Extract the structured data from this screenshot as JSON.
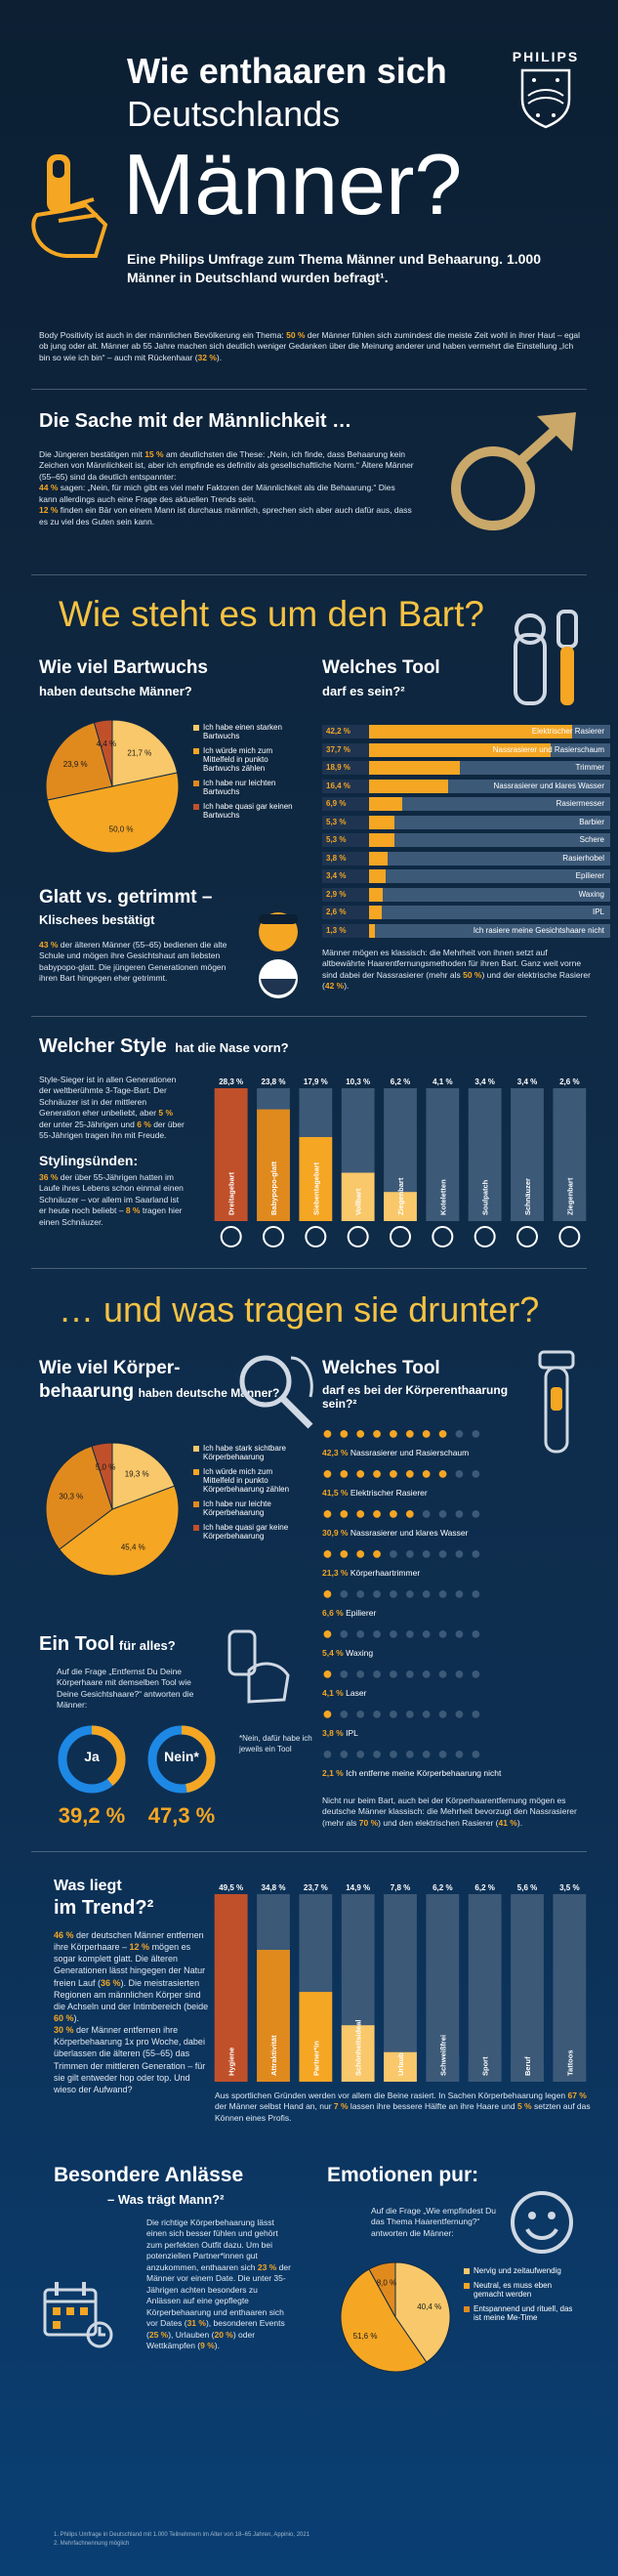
{
  "header": {
    "title_line1": "Wie enthaaren sich",
    "title_line2": "Deutschlands",
    "title_line3": "Männer?",
    "brand": "PHILIPS",
    "subtitle": "Eine Philips Umfrage zum Thema Männer und Behaarung. 1.000 Männer in Deutschland wurden befragt¹.",
    "intro_a": "Body Positivity ist auch in der männlichen Bevölkerung ein Thema: ",
    "intro_pct1": "50 %",
    "intro_b": " der Männer fühlen sich zumindest die meiste Zeit wohl in ihrer Haut – egal ob jung oder alt. Männer ab 55 Jahre machen sich deutlich weniger Gedanken über die Meinung anderer und haben vermehrt die Einstellung „Ich bin so wie ich bin“ – auch mit Rückenhaar (",
    "intro_pct2": "32 %",
    "intro_c": ")."
  },
  "manliness": {
    "title": "Die Sache mit der Männlichkeit …",
    "p1a": "Die Jüngeren bestätigen mit ",
    "p1pct": "15 %",
    "p1b": " am deutlichsten die These: „Nein, ich finde, dass Behaarung kein Zeichen von Männlichkeit ist, aber ich empfinde es definitiv als gesellschaftliche Norm.“ Ältere Männer (55–65) sind da deutlich entspannter:",
    "p2pct": "44 %",
    "p2b": " sagen: „Nein, für mich gibt es viel mehr Faktoren der Männlichkeit als die Behaarung.“ Dies kann allerdings auch eine Frage des aktuellen Trends sein.",
    "p3pct": "12 %",
    "p3b": " finden ein Bär von einem Mann ist durchaus männlich, sprechen sich aber auch dafür aus, dass es zu viel des Guten sein kann."
  },
  "beard_section": {
    "title": "Wie steht es um den Bart?",
    "growth_title": "Wie viel Bartwuchs",
    "growth_sub": "haben deutsche Männer?",
    "growth_legend": [
      "Ich habe einen starken Bartwuchs",
      "Ich würde mich zum Mittelfeld in punkto Bartwuchs zählen",
      "Ich habe nur leichten Bartwuchs",
      "Ich habe quasi gar keinen Bartwuchs"
    ],
    "growth_labels": [
      "21,7 %",
      "50,0 %",
      "23,9 %",
      "4,4 %"
    ],
    "tool_title": "Welches Tool",
    "tool_sub": "darf es sein?²",
    "tools": [
      {
        "pct": "42,2 %",
        "label": "Elektrischer Rasierer",
        "value": 42.2
      },
      {
        "pct": "37,7 %",
        "label": "Nassrasierer und Rasierschaum",
        "value": 37.7
      },
      {
        "pct": "18,9 %",
        "label": "Trimmer",
        "value": 18.9
      },
      {
        "pct": "16,4 %",
        "label": "Nassrasierer und klares Wasser",
        "value": 16.4
      },
      {
        "pct": "6,9 %",
        "label": "Rasiermesser",
        "value": 6.9
      },
      {
        "pct": "5,3 %",
        "label": "Barbier",
        "value": 5.3
      },
      {
        "pct": "5,3 %",
        "label": "Schere",
        "value": 5.3
      },
      {
        "pct": "3,8 %",
        "label": "Rasierhobel",
        "value": 3.8
      },
      {
        "pct": "3,4 %",
        "label": "Epilierer",
        "value": 3.4
      },
      {
        "pct": "2,9 %",
        "label": "Waxing",
        "value": 2.9
      },
      {
        "pct": "2,6 %",
        "label": "IPL",
        "value": 2.6
      },
      {
        "pct": "1,3 %",
        "label": "Ich rasiere meine Gesichtshaare nicht",
        "value": 1.3
      }
    ],
    "tool_note_a": "Männer mögen es klassisch: die Mehrheit von ihnen setzt auf altbewährte Haarentfernungsmethoden für ihren Bart. Ganz weit vorne sind dabei der Nassrasierer (mehr als ",
    "tool_note_pct1": "50 %",
    "tool_note_b": ") und der elektrische Rasierer (",
    "tool_note_pct2": "42 %",
    "tool_note_c": ").",
    "smooth_title": "Glatt vs. getrimmt –",
    "smooth_sub": "Klischees bestätigt",
    "smooth_pct": "43 %",
    "smooth_text": " der älteren Männer (55–65) bedienen die alte Schule und mögen ihre Gesichtshaut am liebsten babypopo-glatt. Die jüngeren Generationen mögen ihren Bart hingegen eher getrimmt."
  },
  "style": {
    "title": "Welcher Style",
    "title_sub": "hat die Nase vorn?",
    "text_a": "Style-Sieger ist in allen Generationen der weltberühmte 3-Tage-Bart. Der Schnäuzer ist in der mittleren Generation eher unbeliebt, aber ",
    "text_pct1": "5 %",
    "text_b": " der unter 25-Jährigen und ",
    "text_pct2": "6 %",
    "text_c": " der über 55-Jährigen tragen ihn mit Freude.",
    "sub_title": "Stylingsünden:",
    "sub_pct1": "36 %",
    "sub_a": " der über 55-Jährigen hatten im Laufe ihres Lebens schon einmal einen Schnäuzer – vor allem im Saarland ist er heute noch beliebt – ",
    "sub_pct2": "8 %",
    "sub_b": " tragen hier einen Schnäuzer.",
    "bars": [
      {
        "pct": "28,3 %",
        "label": "Dreitagebart",
        "value": 28.3
      },
      {
        "pct": "23,8 %",
        "label": "Babypopo-glatt",
        "value": 23.8
      },
      {
        "pct": "17,9 %",
        "label": "Siebentagebart",
        "value": 17.9
      },
      {
        "pct": "10,3 %",
        "label": "Vollbart",
        "value": 10.3
      },
      {
        "pct": "6,2 %",
        "label": "Ziegenbart",
        "value": 6.2
      },
      {
        "pct": "4,1 %",
        "label": "Koteletten",
        "value": 4.1
      },
      {
        "pct": "3,4 %",
        "label": "Soulpatch",
        "value": 3.4
      },
      {
        "pct": "3,4 %",
        "label": "Schnäuzer",
        "value": 3.4
      },
      {
        "pct": "2,6 %",
        "label": "Ziegenbart",
        "value": 2.6
      }
    ]
  },
  "body_section": {
    "title": "… und was tragen sie drunter?",
    "hair_title": "Wie viel Körper-",
    "hair_title2": "behaarung",
    "hair_sub": "haben deutsche Männer?",
    "hair_legend": [
      "Ich habe stark sichtbare Körperbehaarung",
      "Ich würde mich zum Mittelfeld in punkto Körperbehaarung zählen",
      "Ich habe nur leichte Körperbehaarung",
      "Ich habe quasi gar keine Körperbehaarung"
    ],
    "hair_labels": [
      "19,3 %",
      "45,4 %",
      "30,3 %",
      "5,0 %"
    ],
    "tool_title": "Welches Tool",
    "tool_sub": "darf es bei der Körperenthaarung sein?²",
    "tools": [
      {
        "pct": "42,3 %",
        "label": "Nassrasierer und Rasierschaum",
        "value": 42.3
      },
      {
        "pct": "41,5 %",
        "label": "Elektrischer Rasierer",
        "value": 41.5
      },
      {
        "pct": "30,9 %",
        "label": "Nassrasierer und klares Wasser",
        "value": 30.9
      },
      {
        "pct": "21,3 %",
        "label": "Körperhaartrimmer",
        "value": 21.3
      },
      {
        "pct": "6,6 %",
        "label": "Epilierer",
        "value": 6.6
      },
      {
        "pct": "5,4 %",
        "label": "Waxing",
        "value": 5.4
      },
      {
        "pct": "4,1 %",
        "label": "Laser",
        "value": 4.1
      },
      {
        "pct": "3,8 %",
        "label": "IPL",
        "value": 3.8
      },
      {
        "pct": "2,1 %",
        "label": "Ich entferne meine Körperbehaarung nicht",
        "value": 2.1
      }
    ],
    "tool_note_a": "Nicht nur beim Bart, auch bei der Körperhaarentfernung mögen es deutsche Männer klassisch: die Mehrheit bevorzugt den Nassrasierer (mehr als ",
    "tool_note_pct1": "70 %",
    "tool_note_b": ") und den elektrischen Rasierer (",
    "tool_note_pct2": "41 %",
    "tool_note_c": ").",
    "one_tool_title": "Ein Tool",
    "one_tool_sub": "für alles?",
    "one_tool_text": "Auf die Frage „Entfernst Du Deine Körperhaare mit demselben Tool wie Deine Gesichtshaare?“ antworten die Männer:",
    "yes_label": "Ja",
    "no_label": "Nein*",
    "yes_pct": "39,2 %",
    "no_pct": "47,3 %",
    "yes_value": 39.2,
    "no_value": 47.3,
    "no_note": "*Nein, dafür habe ich jeweils ein Tool"
  },
  "trend": {
    "title": "Was liegt",
    "title2": "im Trend?²",
    "p1pct": "46 %",
    "p1": " der deutschen Männer entfernen ihre Körperhaare – ",
    "p2pct": "12 %",
    "p2": " mögen es sogar komplett glatt. Die älteren Generationen lässt hingegen der Natur freien Lauf (",
    "p3pct": "36 %",
    "p3": "). Die meistrasierten Regionen am männlichen Körper sind die Achseln und der Intimbereich (beide ",
    "p4pct": "60 %",
    "p4": ").",
    "p5pct": "30 %",
    "p5": " der Männer entfernen ihre Körperbehaarung 1x pro Woche, dabei überlassen die älteren (55–65) das Trimmen der mittleren Generation – für sie gilt entweder hop oder top. Und wieso der Aufwand?",
    "bars": [
      {
        "pct": "49,5 %",
        "label": "Hygiene",
        "value": 49.5
      },
      {
        "pct": "34,8 %",
        "label": "Attraktivität",
        "value": 34.8
      },
      {
        "pct": "23,7 %",
        "label": "Partner*in",
        "value": 23.7
      },
      {
        "pct": "14,9 %",
        "label": "Schönheitsideal",
        "value": 14.9
      },
      {
        "pct": "7,8 %",
        "label": "Urlaub",
        "value": 7.8
      },
      {
        "pct": "6,2 %",
        "label": "Schweißfrei",
        "value": 6.2
      },
      {
        "pct": "6,2 %",
        "label": "Sport",
        "value": 6.2
      },
      {
        "pct": "5,6 %",
        "label": "Beruf",
        "value": 5.6
      },
      {
        "pct": "3,5 %",
        "label": "Tattoos",
        "value": 3.5
      }
    ],
    "note_a": "Aus sportlichen Gründen werden vor allem die Beine rasiert. In Sachen Körperbehaarung legen ",
    "note_pct1": "67 %",
    "note_b": " der Männer selbst Hand an, nur ",
    "note_pct2": "7 %",
    "note_c": " lassen ihre bessere Hälfte an ihre Haare und ",
    "note_pct3": "5 %",
    "note_d": " setzten auf das Können eines Profis."
  },
  "occasions": {
    "title": "Besondere Anlässe",
    "sub": "– Was trägt Mann?²",
    "text_a": "Die richtige Körperbehaarung lässt einen sich besser fühlen und gehört zum perfekten Outfit dazu. Um bei potenziellen Partner*innen gut anzukommen, enthaaren sich ",
    "pct1": "23 %",
    "text_b": " der Männer vor einem Date. Die unter 35-Jährigen achten besonders zu Anlässen auf eine gepflegte Körperbehaarung und enthaaren sich vor Dates (",
    "pct2": "31 %",
    "text_c": "), besonderen Events (",
    "pct3": "25 %",
    "text_d": "), Urlauben (",
    "pct4": "20 %",
    "text_e": ") oder Wettkämpfen (",
    "pct5": "9 %",
    "text_f": ")."
  },
  "emotions": {
    "title": "Emotionen pur:",
    "question": "Auf die Frage „Wie empfindest Du das Thema Haarentfernung?“ antworten die Männer:",
    "legend": [
      "Nervig und zeitaufwendig",
      "Neutral, es muss eben gemacht werden",
      "Entspannend und rituell, das ist meine Me-Time"
    ],
    "labels": [
      "40,4 %",
      "51,6 %",
      "8,0 %"
    ],
    "values": [
      40.4,
      51.6,
      8.0
    ]
  },
  "footnotes": {
    "f1": "1. Philips Umfrage in Deutschland mit 1.000 Teilnehmern im Alter von 18–65 Jahren, Appinio, 2021",
    "f2": "2. Mehrfachnennung möglich"
  },
  "colors": {
    "orange": "#f5a623",
    "dark_orange": "#e08a1e",
    "rust": "#c0502a",
    "light_orange": "#f9c86a",
    "blue": "#1e88e5",
    "gold": "#f5c242"
  }
}
